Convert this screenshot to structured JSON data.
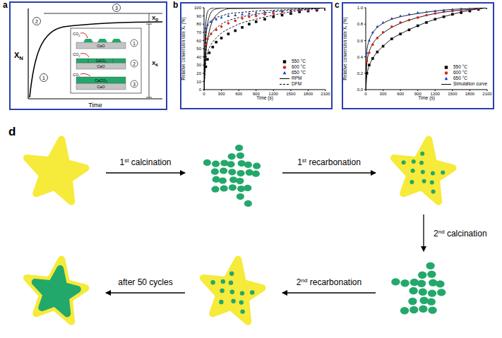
{
  "chart_data": [
    {
      "panel": "b",
      "type": "scatter",
      "x_label": "Time (s)",
      "y_label": "Relative conversion rate Xᵣ (%)",
      "xlim": [
        0,
        2100
      ],
      "xticks": [
        0,
        300,
        600,
        900,
        1200,
        1500,
        1800,
        2100
      ],
      "ylim": [
        0,
        100
      ],
      "yticks": [
        0,
        10,
        20,
        30,
        40,
        50,
        60,
        70,
        80,
        90,
        100
      ],
      "grid": false,
      "legend": "lower right",
      "series": [
        {
          "name": "550 °C",
          "type": "scatter",
          "marker": "square",
          "color": "#000000",
          "x": [
            30,
            60,
            90,
            150,
            210,
            300,
            420,
            540,
            660,
            780,
            900,
            1050,
            1200,
            1350,
            1500,
            1650,
            1800,
            1950,
            2100
          ],
          "values": [
            28,
            37,
            45,
            52,
            58,
            63,
            68,
            72,
            76,
            80,
            83,
            86,
            89,
            91,
            93,
            95,
            96,
            97,
            98
          ]
        },
        {
          "name": "600 °C",
          "type": "scatter",
          "marker": "circle",
          "color": "#e0201b",
          "x": [
            30,
            60,
            120,
            210,
            300,
            420,
            540,
            660,
            780,
            900,
            1050,
            1200,
            1350,
            1500,
            1650,
            1800,
            1950,
            2100
          ],
          "values": [
            55,
            62,
            68,
            73,
            77,
            81,
            84,
            87,
            89,
            90,
            92,
            93,
            95,
            96,
            97,
            97,
            98,
            99
          ]
        },
        {
          "name": "650 °C",
          "type": "scatter",
          "marker": "triangle",
          "color": "#1f3fd0",
          "x": [
            30,
            60,
            120,
            210,
            300,
            420,
            540,
            660,
            780,
            900,
            1050,
            1200,
            1350,
            1500,
            1650,
            1800,
            1950,
            2100
          ],
          "values": [
            75,
            79,
            83,
            86,
            88,
            90,
            91,
            92,
            93,
            94,
            95,
            96,
            96,
            97,
            98,
            98,
            99,
            99
          ]
        },
        {
          "name": "RPM",
          "type": "line",
          "line_style": "solid",
          "color": "#000000",
          "curves": [
            {
              "x": [
                0,
                20,
                40,
                60,
                90,
                120,
                180,
                300,
                2100
              ],
              "values": [
                0,
                70,
                88,
                95,
                98,
                99,
                100,
                100,
                100
              ]
            },
            {
              "x": [
                0,
                30,
                60,
                90,
                120,
                180,
                240,
                360,
                2100
              ],
              "values": [
                0,
                60,
                80,
                89,
                94,
                98,
                99,
                100,
                100
              ]
            },
            {
              "x": [
                0,
                40,
                80,
                120,
                180,
                240,
                330,
                450,
                2100
              ],
              "values": [
                0,
                50,
                68,
                79,
                88,
                93,
                97,
                99,
                100
              ]
            }
          ]
        },
        {
          "name": "DFM",
          "type": "line",
          "line_style": "dashed",
          "color": "#000000",
          "curves": [
            {
              "x": [
                0,
                30,
                60,
                120,
                210,
                300,
                450,
                600,
                900,
                1200,
                1500,
                1800,
                2100
              ],
              "values": [
                0,
                70,
                78,
                84,
                88,
                90,
                93,
                94,
                96,
                97,
                98,
                99,
                100
              ]
            },
            {
              "x": [
                0,
                30,
                60,
                120,
                210,
                300,
                450,
                600,
                900,
                1200,
                1500,
                1800,
                2100
              ],
              "values": [
                0,
                50,
                60,
                68,
                75,
                80,
                85,
                88,
                92,
                95,
                97,
                98,
                100
              ]
            },
            {
              "x": [
                0,
                30,
                60,
                120,
                210,
                300,
                450,
                600,
                900,
                1200,
                1500,
                1800,
                2100
              ],
              "values": [
                0,
                35,
                45,
                55,
                63,
                69,
                75,
                80,
                86,
                91,
                95,
                98,
                100
              ]
            }
          ]
        }
      ]
    },
    {
      "panel": "c",
      "type": "scatter",
      "x_label": "Time (s)",
      "y_label": "Relative conversion rate Xᵣ (%)",
      "xlim": [
        0,
        2100
      ],
      "xticks": [
        0,
        300,
        600,
        900,
        1200,
        1500,
        1800,
        2100
      ],
      "ylim": [
        0,
        1
      ],
      "yticks": [
        {
          "value": 0,
          "label": "0.0"
        },
        0.2,
        0.4,
        0.6,
        0.8,
        {
          "value": 1,
          "label": "1.0"
        }
      ],
      "grid": false,
      "legend": "lower right",
      "series": [
        {
          "name": "550 °C",
          "type": "scatter",
          "marker": "square",
          "color": "#000000",
          "x": [
            20,
            60,
            120,
            200,
            300,
            450,
            600,
            750,
            900,
            1050,
            1200,
            1350,
            1500,
            1650,
            1800,
            1950,
            2100
          ],
          "values": [
            0.2,
            0.3,
            0.38,
            0.46,
            0.53,
            0.62,
            0.68,
            0.73,
            0.78,
            0.82,
            0.86,
            0.89,
            0.92,
            0.94,
            0.96,
            0.98,
            1.0
          ]
        },
        {
          "name": "600 °C",
          "type": "scatter",
          "marker": "circle",
          "color": "#e0201b",
          "x": [
            20,
            60,
            120,
            200,
            300,
            450,
            600,
            750,
            900,
            1050,
            1200,
            1350,
            1500,
            1650,
            1800,
            1950,
            2100
          ],
          "values": [
            0.35,
            0.45,
            0.55,
            0.63,
            0.7,
            0.77,
            0.82,
            0.85,
            0.88,
            0.91,
            0.93,
            0.95,
            0.96,
            0.97,
            0.98,
            0.99,
            1.0
          ]
        },
        {
          "name": "650 °C",
          "type": "scatter",
          "marker": "triangle",
          "color": "#1f3fd0",
          "x": [
            20,
            60,
            120,
            200,
            300,
            450,
            600,
            750,
            900,
            1050,
            1200,
            1350,
            1500,
            1650,
            1800,
            1950,
            2100
          ],
          "values": [
            0.45,
            0.6,
            0.7,
            0.77,
            0.82,
            0.87,
            0.9,
            0.92,
            0.94,
            0.95,
            0.96,
            0.97,
            0.98,
            0.99,
            0.99,
            1.0,
            1.0
          ]
        },
        {
          "name": "Simulation curve",
          "type": "line",
          "line_style": "solid",
          "color": "#000000",
          "curves": [
            {
              "x": [
                0,
                20,
                60,
                120,
                200,
                300,
                450,
                600,
                900,
                1200,
                1500,
                1800,
                2100
              ],
              "values": [
                0,
                0.48,
                0.6,
                0.69,
                0.76,
                0.81,
                0.86,
                0.89,
                0.93,
                0.96,
                0.98,
                0.99,
                1.0
              ]
            },
            {
              "x": [
                0,
                20,
                60,
                120,
                200,
                300,
                450,
                600,
                900,
                1200,
                1500,
                1800,
                2100
              ],
              "values": [
                0,
                0.33,
                0.46,
                0.56,
                0.63,
                0.69,
                0.76,
                0.81,
                0.88,
                0.93,
                0.96,
                0.98,
                1.0
              ]
            },
            {
              "x": [
                0,
                20,
                60,
                120,
                200,
                300,
                450,
                600,
                900,
                1200,
                1500,
                1800,
                2100
              ],
              "values": [
                0,
                0.17,
                0.29,
                0.38,
                0.46,
                0.53,
                0.62,
                0.68,
                0.78,
                0.86,
                0.92,
                0.97,
                1.0
              ]
            }
          ]
        }
      ]
    }
  ],
  "panels": {
    "a": {
      "label": "a",
      "y_label": {
        "text": "X",
        "sub": "N"
      },
      "x_label": "Time",
      "brackets": [
        {
          "text": "X",
          "sub": "D"
        },
        {
          "text": "X",
          "sub": "K"
        }
      ],
      "stages": [
        "1",
        "2",
        "3"
      ],
      "inset": {
        "gas": {
          "text": "CO",
          "sub": "2"
        },
        "solid": "CaO",
        "product": {
          "text": "CaCO",
          "sub": "3"
        }
      }
    },
    "d": {
      "label": "d",
      "steps": [
        "1st calcination",
        "1st recarbonation",
        "2nd calcination",
        "2nd recarbonation",
        "after 50 cycles"
      ]
    }
  }
}
